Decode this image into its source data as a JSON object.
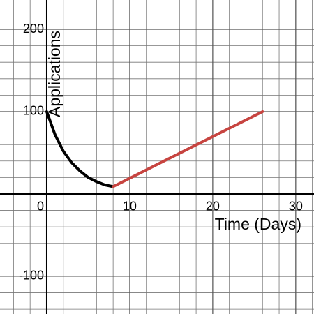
{
  "chart_data": {
    "type": "line",
    "x_label": "Time (Days)",
    "y_label": "Applications",
    "xlim": [
      -5.63,
      32.2
    ],
    "ylim": [
      -145.8,
      235.6
    ],
    "xticks": [
      0,
      10,
      20,
      30
    ],
    "yticks": [
      -100,
      100,
      200
    ],
    "grid": true,
    "xgrid": [
      -4,
      -2,
      2,
      4,
      6,
      8,
      10,
      12,
      14,
      16,
      18,
      20,
      22,
      24,
      26,
      28,
      30,
      32
    ],
    "ygrid": [
      -140,
      -120,
      -100,
      -80,
      -60,
      -40,
      -20,
      20,
      40,
      60,
      80,
      100,
      120,
      140,
      160,
      180,
      200,
      220
    ],
    "series": [
      {
        "color": "#000000",
        "x": [
          0,
          1,
          2,
          3,
          4,
          5,
          6,
          7,
          8
        ],
        "values": [
          100,
          72,
          52,
          38,
          28,
          20,
          15,
          11,
          9
        ]
      },
      {
        "color": "#c74440",
        "x": [
          8,
          26
        ],
        "values": [
          9,
          100
        ]
      }
    ]
  }
}
